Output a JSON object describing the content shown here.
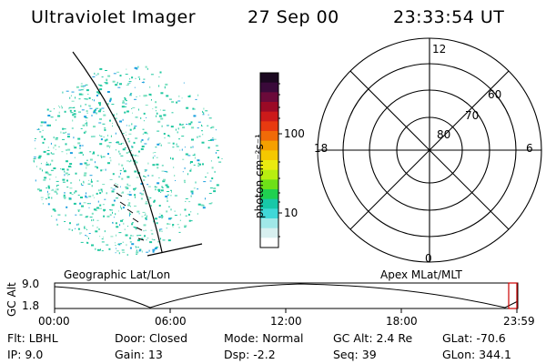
{
  "header": {
    "instrument": "Ultraviolet Imager",
    "date": "27 Sep 00",
    "time": "23:33:54 UT"
  },
  "colorbar": {
    "unit_label": "photon cm⁻²s⁻¹",
    "ticks": [
      "100",
      "10"
    ],
    "colors": [
      "#1b0820",
      "#3a0a3a",
      "#6b0a3a",
      "#9b0a26",
      "#cc1a1a",
      "#e83a10",
      "#f06a08",
      "#f5a000",
      "#f5c800",
      "#eaea10",
      "#b8ee10",
      "#6ee018",
      "#20d050",
      "#18c8a8",
      "#40d8d8",
      "#a0e8e8",
      "#d8f0f0",
      "#ffffff"
    ]
  },
  "left_panel": {
    "label": "Geographic Lat/Lon",
    "dot_colors": [
      "#20c8a0",
      "#1ea0e0",
      "#7ce0c0"
    ]
  },
  "right_panel": {
    "label": "Apex MLat/MLT",
    "mlt_labels": {
      "top": "12",
      "left": "18",
      "right": "6",
      "bottom": "0"
    },
    "lat_labels": [
      "60",
      "70",
      "80"
    ]
  },
  "altitude_plot": {
    "axis_title": "GC Alt",
    "y_ticks": [
      "9.0",
      "1.8"
    ],
    "x_ticks": [
      "00:00",
      "06:00",
      "12:00",
      "18:00",
      "23:59"
    ],
    "current_marker_color": "#cc0000"
  },
  "status": {
    "flt": "Flt:  LBHL",
    "ip": "IP:  9.0",
    "door": "Door:  Closed",
    "gain": "Gain:  13",
    "mode": "Mode:  Normal",
    "dsp": "Dsp:    -2.2",
    "gc_alt": "GC Alt:  2.4 Re",
    "seq": "Seq:  39",
    "glat": "GLat:  -70.6",
    "glon": "GLon:  344.1"
  }
}
